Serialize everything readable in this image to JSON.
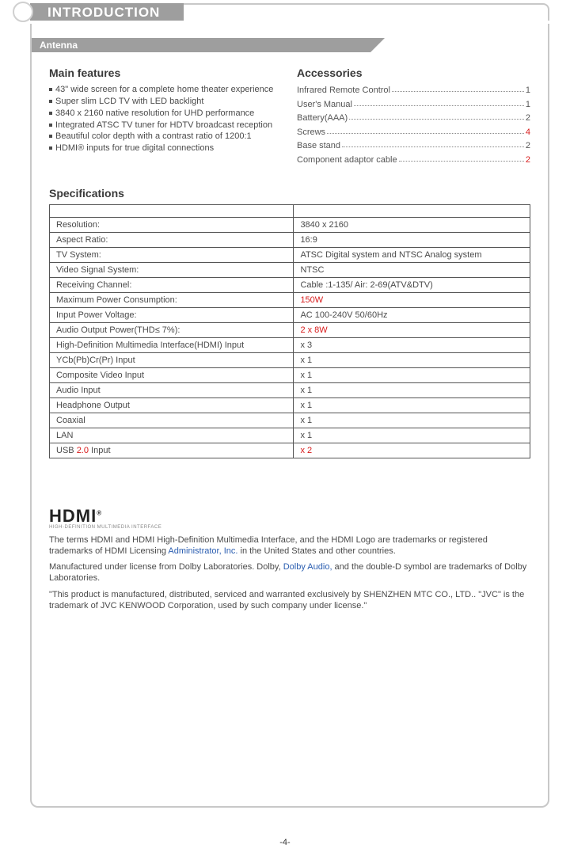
{
  "header": {
    "title": "INTRODUCTION",
    "subtitle": "Antenna"
  },
  "mainFeatures": {
    "heading": "Main features",
    "items": [
      "43\" wide screen for a complete home theater experience",
      "Super slim LCD TV with LED backlight",
      "3840 x 2160 native resolution for UHD performance",
      "Integrated ATSC TV tuner for HDTV broadcast reception",
      "Beautiful color depth with a contrast ratio of 1200:1",
      "HDMI® inputs for true digital connections"
    ]
  },
  "accessories": {
    "heading": "Accessories",
    "rows": [
      {
        "label": "Infrared Remote Control",
        "qty": "1",
        "red": false
      },
      {
        "label": "User's Manual",
        "qty": "1",
        "red": false
      },
      {
        "label": "Battery(AAA)",
        "qty": "2",
        "red": false
      },
      {
        "label": "Screws",
        "qty": "4",
        "red": true
      },
      {
        "label": "Base stand",
        "qty": "2",
        "red": false
      },
      {
        "label": "Component adaptor cable",
        "qty": "2",
        "red": true
      }
    ]
  },
  "specsHeading": "Specifications",
  "specs": [
    {
      "k": "Resolution:",
      "v": "3840 x 2160"
    },
    {
      "k": "Aspect Ratio:",
      "v": "16:9"
    },
    {
      "k": "TV  System:",
      "v": "ATSC Digital system and NTSC Analog system"
    },
    {
      "k": "Video Signal System:",
      "v": "NTSC"
    },
    {
      "k": "Receiving Channel:",
      "v": "Cable :1-135/ Air: 2-69(ATV&DTV)"
    },
    {
      "k": "Maximum Power Consumption:",
      "v": "150W",
      "vred": true
    },
    {
      "k": "Input Power  Voltage:",
      "v": "AC 100-240V 50/60Hz"
    },
    {
      "k": "Audio  Output Power(THD≤ 7%):",
      "v": "2 x 8W",
      "vred": true
    },
    {
      "k": "High-Definition Multimedia Interface(HDMI) Input",
      "v": "x 3"
    },
    {
      "k": "YCb(Pb)Cr(Pr) Input",
      "v": "x 1"
    },
    {
      "k": "Composite Video Input",
      "v": "x 1"
    },
    {
      "k": "Audio Input",
      "v": "x 1"
    },
    {
      "k": "Headphone Output",
      "v": "x 1"
    },
    {
      "k": "Coaxial",
      "v": "x 1"
    },
    {
      "k": "LAN",
      "v": "x 1"
    },
    {
      "k": "USB 2.0 Input",
      "v": "x 2",
      "kblue_part": "2.0",
      "vred": true
    }
  ],
  "hdmi": {
    "logo": "HDMI",
    "logoSub": "HIGH-DEFINITION MULTIMEDIA INTERFACE",
    "para1_a": "The terms HDMI and HDMI High-Definition Multimedia Interface, and the HDMI Logo are trademarks or registered trademarks of HDMI Licensing ",
    "para1_blue": "Administrator, Inc.",
    "para1_b": " in the United States and other countries.",
    "para2_a": "Manufactured under license from Dolby Laboratories. Dolby, ",
    "para2_blue": "Dolby Audio,",
    "para2_b": " and the double-D symbol are trademarks of Dolby Laboratories.",
    "para3": "\"This product is manufactured, distributed, serviced and warranted exclusively by SHENZHEN MTC CO., LTD..  \"JVC\" is the trademark of JVC KENWOOD Corporation, used by such company under license.\""
  },
  "pageNumber": "-4-",
  "colors": {
    "gray": "#9e9e9e",
    "border": "#c8c8c8",
    "text": "#4a4a4a",
    "red": "#d81b1b",
    "blue": "#2a5db0"
  }
}
